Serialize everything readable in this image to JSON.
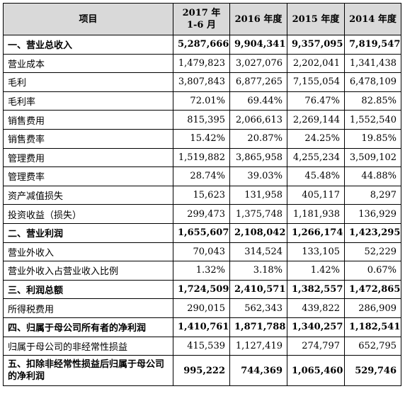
{
  "table": {
    "headers": [
      "项目",
      "2017 年\n1-6 月",
      "2016 年度",
      "2015 年度",
      "2014 年度"
    ],
    "rows": [
      {
        "label": "一、营业总收入",
        "values": [
          "5,287,666",
          "9,904,341",
          "9,357,095",
          "7,819,547"
        ],
        "bold": true
      },
      {
        "label": "营业成本",
        "values": [
          "1,479,823",
          "3,027,076",
          "2,202,041",
          "1,341,438"
        ]
      },
      {
        "label": "毛利",
        "values": [
          "3,807,843",
          "6,877,265",
          "7,155,054",
          "6,478,109"
        ]
      },
      {
        "label": "毛利率",
        "values": [
          "72.01%",
          "69.44%",
          "76.47%",
          "82.85%"
        ]
      },
      {
        "label": "销售费用",
        "values": [
          "815,395",
          "2,066,613",
          "2,269,144",
          "1,552,540"
        ]
      },
      {
        "label": "销售费率",
        "values": [
          "15.42%",
          "20.87%",
          "24.25%",
          "19.85%"
        ]
      },
      {
        "label": "管理费用",
        "values": [
          "1,519,882",
          "3,865,958",
          "4,255,234",
          "3,509,102"
        ]
      },
      {
        "label": "管理费率",
        "values": [
          "28.74%",
          "39.03%",
          "45.48%",
          "44.88%"
        ]
      },
      {
        "label": "资产减值损失",
        "values": [
          "15,623",
          "131,958",
          "405,117",
          "8,297"
        ]
      },
      {
        "label": "投资收益（损失）",
        "values": [
          "299,473",
          "1,375,748",
          "1,181,938",
          "136,929"
        ]
      },
      {
        "label": "二、营业利润",
        "values": [
          "1,655,607",
          "2,108,042",
          "1,266,174",
          "1,423,295"
        ],
        "bold": true
      },
      {
        "label": "营业外收入",
        "values": [
          "70,043",
          "314,524",
          "133,105",
          "52,229"
        ]
      },
      {
        "label": "营业外收入占营业收入比例",
        "values": [
          "1.32%",
          "3.18%",
          "1.42%",
          "0.67%"
        ]
      },
      {
        "label": "三、利润总额",
        "values": [
          "1,724,509",
          "2,410,571",
          "1,382,557",
          "1,472,865"
        ],
        "bold": true
      },
      {
        "label": "所得税费用",
        "values": [
          "290,015",
          "562,343",
          "439,822",
          "286,909"
        ]
      },
      {
        "label": "四、归属于母公司所有者的净利润",
        "values": [
          "1,410,761",
          "1,871,788",
          "1,340,257",
          "1,182,541"
        ],
        "bold": true
      },
      {
        "label": "归属于母公司的非经常性损益",
        "values": [
          "415,539",
          "1,127,419",
          "274,797",
          "652,795"
        ]
      },
      {
        "label": "五、扣除非经常性损益后归属于母公司的净利润",
        "values": [
          "995,222",
          "744,369",
          "1,065,460",
          "529,746"
        ],
        "bold": true,
        "tall": true
      }
    ]
  }
}
